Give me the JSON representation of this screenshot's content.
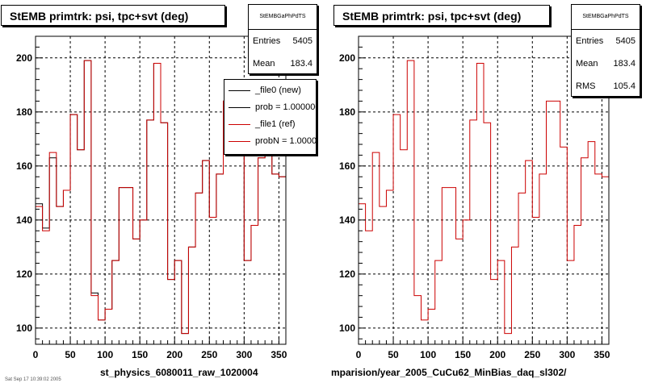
{
  "chart_data": [
    {
      "type": "histogram",
      "title": "StEMB primtrk: psi, tpc+svt (deg)",
      "xlim": [
        0,
        360
      ],
      "ylim": [
        94,
        208
      ],
      "xticks": [
        0,
        50,
        100,
        150,
        200,
        250,
        300,
        350
      ],
      "yticks": [
        100,
        120,
        140,
        160,
        180,
        200
      ],
      "grid": true,
      "bin_edges": [
        0,
        10,
        20,
        30,
        40,
        50,
        60,
        70,
        80,
        90,
        100,
        110,
        120,
        130,
        140,
        150,
        160,
        170,
        180,
        190,
        200,
        210,
        220,
        230,
        240,
        250,
        260,
        270,
        280,
        290,
        300,
        310,
        320,
        330,
        340,
        350,
        360
      ],
      "series": [
        {
          "name": "_file0 (new)",
          "color": "#000000",
          "values": [
            146,
            137,
            163,
            145,
            151,
            179,
            166,
            199,
            113,
            103,
            107,
            125,
            152,
            152,
            133,
            140,
            177,
            198,
            176,
            118,
            125,
            98,
            130,
            150,
            162,
            141,
            157,
            184,
            184,
            167,
            125,
            138,
            163,
            169,
            157,
            156
          ]
        },
        {
          "name": "_file1 (ref)",
          "color": "#cc0000",
          "values": [
            145,
            136,
            165,
            145,
            151,
            179,
            166,
            199,
            112,
            103,
            107,
            125,
            152,
            152,
            133,
            140,
            177,
            198,
            176,
            118,
            125,
            98,
            130,
            150,
            162,
            141,
            157,
            184,
            184,
            167,
            125,
            138,
            163,
            169,
            157,
            156
          ]
        }
      ],
      "stats": {
        "name": "StEMBGaPhPdTS",
        "entries_label": "Entries",
        "entries": "5405",
        "mean_label": "Mean",
        "mean": "183.4"
      },
      "legend": [
        "_file0 (new)",
        "prob = 1.000000",
        "_file1 (ref)",
        "probN = 1.000000"
      ],
      "xfile": "st_physics_6080011_raw_1020004"
    },
    {
      "type": "histogram",
      "title": "StEMB primtrk: psi, tpc+svt (deg)",
      "xlim": [
        0,
        360
      ],
      "ylim": [
        94,
        208
      ],
      "xticks": [
        0,
        50,
        100,
        150,
        200,
        250,
        300,
        350
      ],
      "yticks": [
        100,
        120,
        140,
        160,
        180,
        200
      ],
      "grid": true,
      "bin_edges": [
        0,
        10,
        20,
        30,
        40,
        50,
        60,
        70,
        80,
        90,
        100,
        110,
        120,
        130,
        140,
        150,
        160,
        170,
        180,
        190,
        200,
        210,
        220,
        230,
        240,
        250,
        260,
        270,
        280,
        290,
        300,
        310,
        320,
        330,
        340,
        350,
        360
      ],
      "series": [
        {
          "color": "#cc0000",
          "values": [
            146,
            136,
            165,
            145,
            151,
            179,
            166,
            199,
            112,
            103,
            107,
            125,
            152,
            152,
            133,
            140,
            177,
            198,
            176,
            118,
            125,
            98,
            130,
            150,
            162,
            141,
            157,
            184,
            184,
            167,
            125,
            138,
            163,
            169,
            157,
            156
          ]
        }
      ],
      "stats": {
        "name": "StEMBGaPhPdTS",
        "entries_label": "Entries",
        "entries": "5405",
        "mean_label": "Mean",
        "mean": "183.4",
        "rms_label": "RMS",
        "rms": "105.4"
      },
      "xfile": "mparision/year_2005_CuCu62_MinBias_daq_sl302/"
    }
  ],
  "footnote": "Sat Sep 17 10:39:02 2005"
}
